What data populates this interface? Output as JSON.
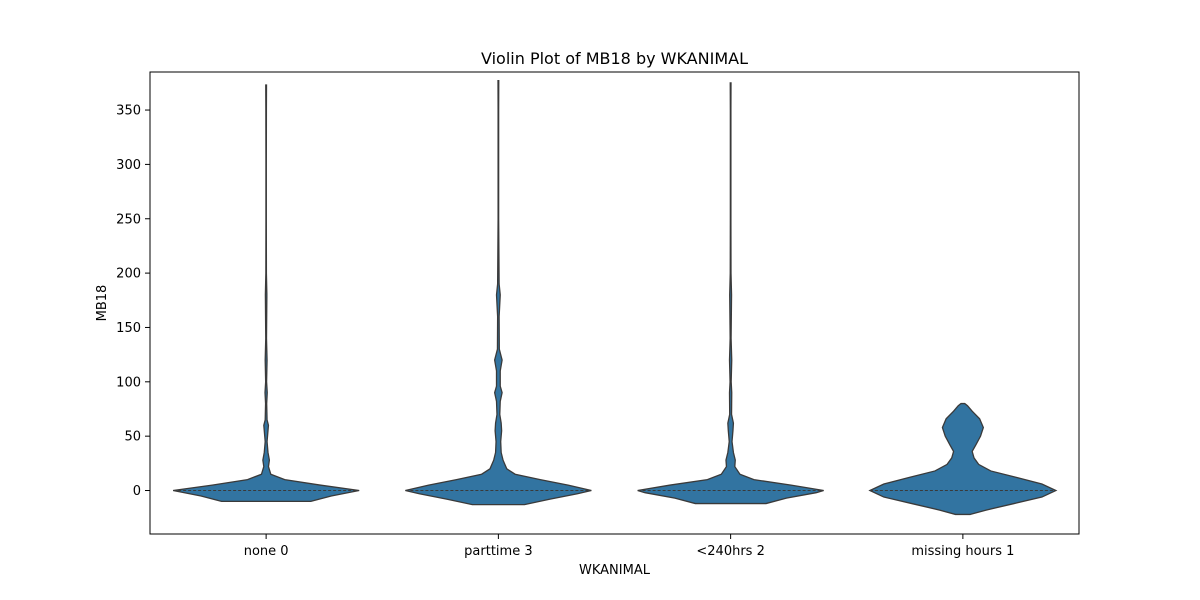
{
  "chart_data": {
    "type": "violin",
    "title": "Violin Plot of MB18 by WKANIMAL",
    "xlabel": "WKANIMAL",
    "ylabel": "MB18",
    "categories": [
      "none 0",
      "parttime 3",
      "<240hrs 2",
      "missing hours 1"
    ],
    "ylim": [
      -40,
      385
    ],
    "yticks": [
      0,
      50,
      100,
      150,
      200,
      250,
      300,
      350
    ],
    "grid": false,
    "color": "#3274a1",
    "edge_color": "#3a3a3a",
    "violins": [
      {
        "category": "none 0",
        "min": -10,
        "max": 373,
        "median": 0,
        "density": [
          [
            -10,
            0.48
          ],
          [
            -5,
            0.7
          ],
          [
            0,
            1.0
          ],
          [
            5,
            0.58
          ],
          [
            10,
            0.2
          ],
          [
            15,
            0.05
          ],
          [
            22,
            0.025
          ],
          [
            28,
            0.035
          ],
          [
            35,
            0.02
          ],
          [
            45,
            0.01
          ],
          [
            55,
            0.02
          ],
          [
            60,
            0.025
          ],
          [
            65,
            0.01
          ],
          [
            80,
            0.006
          ],
          [
            90,
            0.012
          ],
          [
            100,
            0.005
          ],
          [
            120,
            0.01
          ],
          [
            140,
            0.004
          ],
          [
            180,
            0.008
          ],
          [
            200,
            0.003
          ],
          [
            250,
            0.002
          ],
          [
            300,
            0.002
          ],
          [
            350,
            0.003
          ],
          [
            373,
            0.004
          ]
        ]
      },
      {
        "category": "parttime 3",
        "min": -13,
        "max": 377,
        "median": 0,
        "density": [
          [
            -13,
            0.28
          ],
          [
            -8,
            0.55
          ],
          [
            -3,
            0.85
          ],
          [
            0,
            1.0
          ],
          [
            5,
            0.75
          ],
          [
            10,
            0.45
          ],
          [
            15,
            0.18
          ],
          [
            20,
            0.09
          ],
          [
            28,
            0.05
          ],
          [
            35,
            0.03
          ],
          [
            45,
            0.025
          ],
          [
            55,
            0.035
          ],
          [
            62,
            0.03
          ],
          [
            70,
            0.015
          ],
          [
            82,
            0.02
          ],
          [
            90,
            0.04
          ],
          [
            96,
            0.02
          ],
          [
            110,
            0.02
          ],
          [
            120,
            0.04
          ],
          [
            130,
            0.01
          ],
          [
            160,
            0.008
          ],
          [
            180,
            0.02
          ],
          [
            190,
            0.008
          ],
          [
            250,
            0.003
          ],
          [
            300,
            0.003
          ],
          [
            350,
            0.003
          ],
          [
            377,
            0.004
          ]
        ]
      },
      {
        "category": "<240hrs 2",
        "min": -12,
        "max": 375,
        "median": 0,
        "density": [
          [
            -12,
            0.38
          ],
          [
            -7,
            0.6
          ],
          [
            -2,
            0.92
          ],
          [
            0,
            1.0
          ],
          [
            5,
            0.65
          ],
          [
            10,
            0.25
          ],
          [
            15,
            0.1
          ],
          [
            22,
            0.045
          ],
          [
            28,
            0.05
          ],
          [
            35,
            0.03
          ],
          [
            45,
            0.015
          ],
          [
            55,
            0.025
          ],
          [
            62,
            0.03
          ],
          [
            70,
            0.01
          ],
          [
            90,
            0.012
          ],
          [
            100,
            0.006
          ],
          [
            120,
            0.012
          ],
          [
            140,
            0.005
          ],
          [
            180,
            0.01
          ],
          [
            200,
            0.004
          ],
          [
            250,
            0.003
          ],
          [
            300,
            0.003
          ],
          [
            350,
            0.003
          ],
          [
            375,
            0.004
          ]
        ]
      },
      {
        "category": "missing hours 1",
        "min": -22,
        "max": 80,
        "median": 0,
        "density": [
          [
            -22,
            0.08
          ],
          [
            -18,
            0.25
          ],
          [
            -12,
            0.55
          ],
          [
            -6,
            0.85
          ],
          [
            0,
            1.0
          ],
          [
            6,
            0.85
          ],
          [
            12,
            0.58
          ],
          [
            18,
            0.3
          ],
          [
            24,
            0.17
          ],
          [
            30,
            0.12
          ],
          [
            36,
            0.1
          ],
          [
            42,
            0.14
          ],
          [
            50,
            0.19
          ],
          [
            58,
            0.22
          ],
          [
            66,
            0.18
          ],
          [
            73,
            0.1
          ],
          [
            78,
            0.05
          ],
          [
            80,
            0.02
          ]
        ]
      }
    ]
  }
}
